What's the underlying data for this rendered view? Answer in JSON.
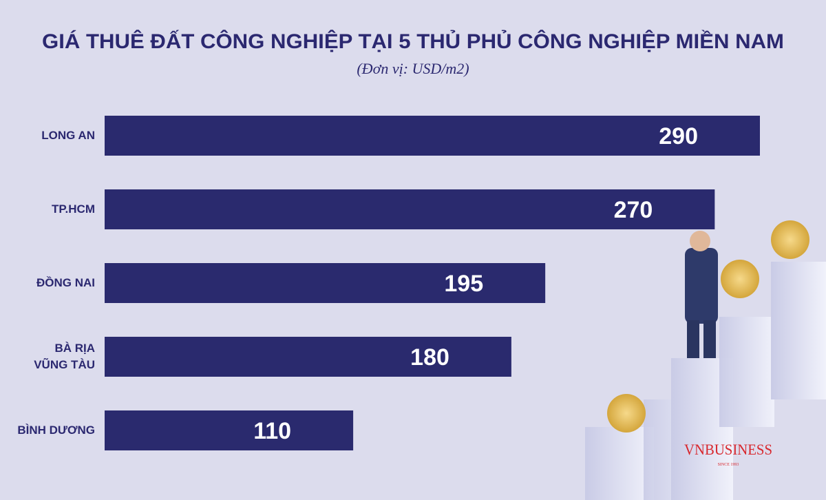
{
  "chart_data": {
    "type": "bar",
    "orientation": "horizontal",
    "title": "GIÁ THUÊ ĐẤT CÔNG NGHIỆP TẠI 5 THỦ PHỦ CÔNG NGHIỆP MIỀN NAM",
    "subtitle": "(Đơn vị: USD/m2)",
    "categories": [
      "LONG AN",
      "TP.HCM",
      "ĐỒNG NAI",
      "BÀ RỊA\nVŨNG TÀU",
      "BÌNH DƯƠNG"
    ],
    "values": [
      290,
      270,
      195,
      180,
      110
    ],
    "color": "#2a2a6e"
  },
  "brand": {
    "name": "VNBUSINESS",
    "tagline": "SINCE 1993"
  }
}
